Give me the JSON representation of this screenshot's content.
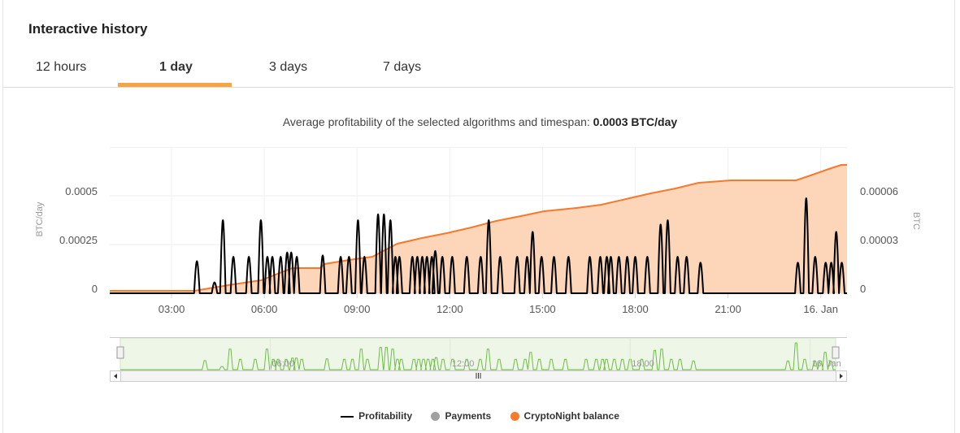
{
  "header": {
    "title": "Interactive history"
  },
  "tabs": [
    {
      "label": "12 hours"
    },
    {
      "label": "1 day",
      "active": true
    },
    {
      "label": "3 days"
    },
    {
      "label": "7 days"
    }
  ],
  "subtitle": {
    "text": "Average profitability of the selected algorithms and timespan:",
    "value": "0.0003 BTC/day"
  },
  "legend": [
    {
      "label": "Profitability",
      "color": "#000000"
    },
    {
      "label": "Payments",
      "color": "#a0a0a0"
    },
    {
      "label": "CryptoNight balance",
      "color": "#f7792b"
    }
  ],
  "chart_data": {
    "type": "line",
    "xlabel": "",
    "x_unit": "hours since 00:00 (15 Jan)",
    "xlim": [
      1.0,
      24.85
    ],
    "x_ticks": [
      {
        "value": 3,
        "label": "03:00"
      },
      {
        "value": 6,
        "label": "06:00"
      },
      {
        "value": 9,
        "label": "09:00"
      },
      {
        "value": 12,
        "label": "12:00"
      },
      {
        "value": 15,
        "label": "15:00"
      },
      {
        "value": 18,
        "label": "18:00"
      },
      {
        "value": 21,
        "label": "21:00"
      },
      {
        "value": 24,
        "label": "16. Jan"
      }
    ],
    "y_left": {
      "label": "BTC/day",
      "range": [
        0,
        0.00075
      ],
      "ticks": [
        {
          "value": 0,
          "label": "0"
        },
        {
          "value": 0.00025,
          "label": "0.00025"
        },
        {
          "value": 0.0005,
          "label": "0.0005"
        }
      ]
    },
    "y_right": {
      "label": "BTC",
      "range": [
        0,
        9e-05
      ],
      "ticks": [
        {
          "value": 0,
          "label": "0"
        },
        {
          "value": 3e-05,
          "label": "0.00003"
        },
        {
          "value": 6e-05,
          "label": "0.00006"
        }
      ]
    },
    "navigator_ticks": [
      {
        "value": 6,
        "label": "06:00"
      },
      {
        "value": 12,
        "label": "12:00"
      },
      {
        "value": 18,
        "label": "18:00"
      },
      {
        "value": 24,
        "label": "16. Jan"
      }
    ],
    "series": [
      {
        "name": "Profitability",
        "axis": "left",
        "color": "#000000",
        "peaks": [
          [
            3.82,
            0.00022
          ],
          [
            4.39,
            7.5e-05
          ],
          [
            4.66,
            0.0005
          ],
          [
            5.0,
            0.00025
          ],
          [
            5.5,
            0.00025
          ],
          [
            5.89,
            0.0005
          ],
          [
            6.1,
            0.00025
          ],
          [
            6.26,
            0.00025
          ],
          [
            6.53,
            0.00025
          ],
          [
            6.74,
            0.00028
          ],
          [
            6.87,
            0.00028
          ],
          [
            7.05,
            0.00025
          ],
          [
            7.89,
            0.00026
          ],
          [
            8.47,
            0.00025
          ],
          [
            8.74,
            0.00025
          ],
          [
            9.03,
            0.0005
          ],
          [
            9.24,
            0.00025
          ],
          [
            9.68,
            0.00054
          ],
          [
            9.87,
            0.00054
          ],
          [
            10.08,
            0.0005
          ],
          [
            10.24,
            0.00025
          ],
          [
            10.37,
            0.00025
          ],
          [
            10.79,
            0.00025
          ],
          [
            10.95,
            0.00025
          ],
          [
            11.11,
            0.00025
          ],
          [
            11.26,
            0.00025
          ],
          [
            11.42,
            0.00025
          ],
          [
            11.53,
            0.00029
          ],
          [
            11.76,
            0.00025
          ],
          [
            12.08,
            0.00025
          ],
          [
            12.55,
            0.00025
          ],
          [
            13.0,
            0.00025
          ],
          [
            13.26,
            0.0005
          ],
          [
            13.63,
            0.00025
          ],
          [
            14.18,
            0.00025
          ],
          [
            14.5,
            0.00025
          ],
          [
            14.68,
            0.00042
          ],
          [
            14.97,
            0.00025
          ],
          [
            15.37,
            0.00025
          ],
          [
            15.84,
            0.00025
          ],
          [
            16.53,
            0.00025
          ],
          [
            16.87,
            0.00025
          ],
          [
            17.08,
            0.00025
          ],
          [
            17.21,
            0.00025
          ],
          [
            17.47,
            0.00025
          ],
          [
            17.74,
            0.00025
          ],
          [
            18.0,
            0.00025
          ],
          [
            18.39,
            0.00025
          ],
          [
            18.82,
            0.00047
          ],
          [
            19.05,
            0.0005
          ],
          [
            19.37,
            0.00025
          ],
          [
            19.66,
            0.00025
          ],
          [
            20.11,
            0.00021
          ],
          [
            23.26,
            0.00021
          ],
          [
            23.53,
            0.00065
          ],
          [
            23.82,
            0.00025
          ],
          [
            24.16,
            0.00021
          ],
          [
            24.34,
            0.00021
          ],
          [
            24.5,
            0.00042
          ],
          [
            24.68,
            0.00021
          ]
        ]
      },
      {
        "name": "CryptoNight balance",
        "axis": "right",
        "color": "#f7792b",
        "points": [
          [
            1.0,
            1.5e-06
          ],
          [
            3.74,
            1.5e-06
          ],
          [
            5.0,
            5.5e-06
          ],
          [
            5.9,
            8e-06
          ],
          [
            6.9,
            1.55e-05
          ],
          [
            7.8,
            1.55e-05
          ],
          [
            7.95,
            1.8e-05
          ],
          [
            8.74,
            2.05e-05
          ],
          [
            9.5,
            2.25e-05
          ],
          [
            10.3,
            3.05e-05
          ],
          [
            11.1,
            3.4e-05
          ],
          [
            11.9,
            3.7e-05
          ],
          [
            12.7,
            4.05e-05
          ],
          [
            13.5,
            4.45e-05
          ],
          [
            14.3,
            4.75e-05
          ],
          [
            15.05,
            5.05e-05
          ],
          [
            16.1,
            5.25e-05
          ],
          [
            16.9,
            5.45e-05
          ],
          [
            17.7,
            5.8e-05
          ],
          [
            18.5,
            6.15e-05
          ],
          [
            19.3,
            6.45e-05
          ],
          [
            20.05,
            6.8e-05
          ],
          [
            21.1,
            6.95e-05
          ],
          [
            23.2,
            6.95e-05
          ],
          [
            23.74,
            7.3e-05
          ],
          [
            24.26,
            7.65e-05
          ],
          [
            24.66,
            7.9e-05
          ],
          [
            24.85,
            7.9e-05
          ]
        ]
      },
      {
        "name": "Payments",
        "axis": "right",
        "color": "#a0a0a0",
        "points": []
      }
    ]
  }
}
